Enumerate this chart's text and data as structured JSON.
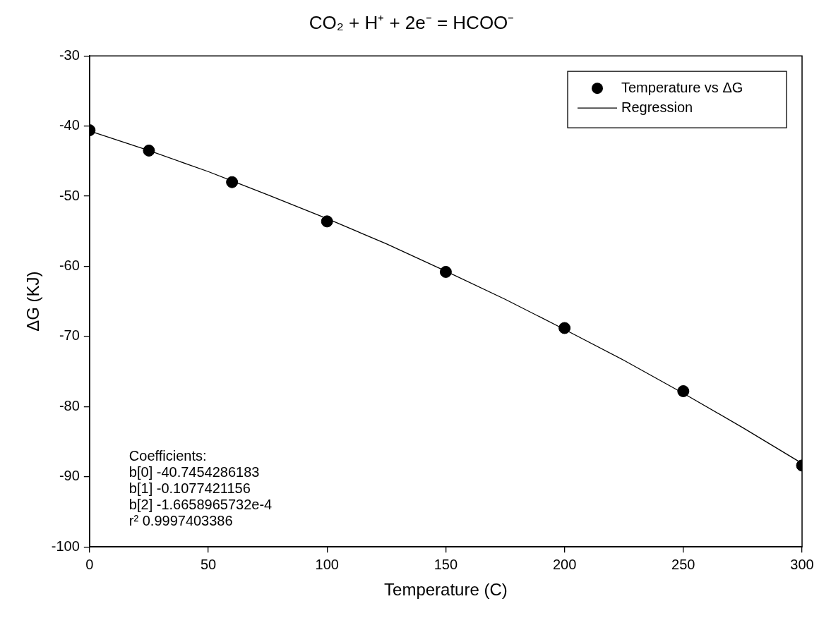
{
  "chart_data": {
    "type": "scatter",
    "title": "CO₂ + H⁺ + 2e⁻ = HCOO⁻",
    "xlabel": "Temperature (C)",
    "ylabel": "ΔG (KJ)",
    "xlim": [
      0,
      300
    ],
    "ylim": [
      -100,
      -30
    ],
    "xticks": [
      0,
      50,
      100,
      150,
      200,
      250,
      300
    ],
    "yticks": [
      -100,
      -90,
      -80,
      -70,
      -60,
      -50,
      -40,
      -30
    ],
    "grid": false,
    "legend": "top right",
    "marker": "circle",
    "line_style": "solid",
    "series": [
      {
        "name": "Temperature vs ΔG",
        "color": "#000000",
        "x": [
          0,
          25,
          60,
          100,
          150,
          200,
          250,
          300
        ],
        "values": [
          -40.6,
          -43.5,
          -48.0,
          -53.6,
          -60.8,
          -68.8,
          -77.8,
          -88.4
        ]
      },
      {
        "name": "Regression",
        "type": "line",
        "marker": "none",
        "color": "#000000",
        "x": [
          0,
          25,
          50,
          75,
          100,
          125,
          150,
          175,
          200,
          225,
          250,
          275,
          300
        ],
        "values": [
          -40.7,
          -43.5,
          -46.5,
          -49.8,
          -53.2,
          -56.8,
          -60.7,
          -64.7,
          -69.0,
          -73.4,
          -78.1,
          -83.0,
          -88.1
        ]
      }
    ],
    "annotations": [
      "Coefficients:",
      "b[0] -40.7454286183",
      "b[1] -0.1077421156",
      "b[2] -1.6658965732e-4",
      "r² 0.9997403386"
    ]
  }
}
